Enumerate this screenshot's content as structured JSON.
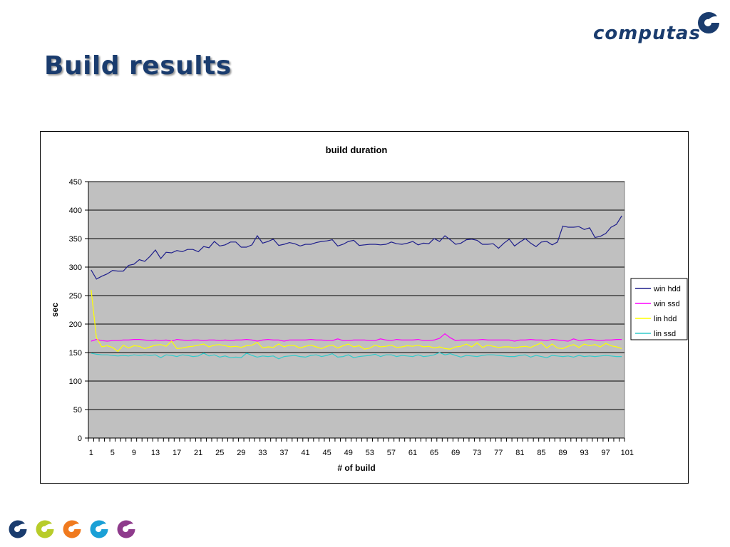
{
  "slide": {
    "title": "Build results"
  },
  "logo": {
    "text": "computas",
    "color": "#1a3c6e",
    "accent": "#1a3c6e"
  },
  "colors": {
    "title": "#1a3c6e",
    "plot_bg": "#c0c0c0",
    "gridline": "#000000"
  },
  "footer": {
    "icons": [
      {
        "name": "computas-mark-icon",
        "color": "#1a3c6e"
      },
      {
        "name": "computas-mark-icon",
        "color": "#b8cc2a"
      },
      {
        "name": "computas-mark-icon",
        "color": "#f07a1e"
      },
      {
        "name": "computas-mark-icon",
        "color": "#1aa0d6"
      },
      {
        "name": "computas-mark-icon",
        "color": "#8e3b8c"
      }
    ]
  },
  "chart_data": {
    "type": "line",
    "title": "build duration",
    "xlabel": "# of build",
    "ylabel": "sec",
    "ylim": [
      0,
      450
    ],
    "yticks": [
      0,
      50,
      100,
      150,
      200,
      250,
      300,
      350,
      400,
      450
    ],
    "xlim": [
      1,
      101
    ],
    "xticks": [
      1,
      5,
      9,
      13,
      17,
      21,
      25,
      29,
      33,
      37,
      41,
      45,
      49,
      53,
      57,
      61,
      65,
      69,
      73,
      77,
      81,
      85,
      89,
      93,
      97,
      101
    ],
    "grid": "horizontal",
    "legend_position": "right",
    "series": [
      {
        "name": "win hdd",
        "color": "#1f1f8c",
        "values": [
          295,
          279,
          284,
          288,
          294,
          293,
          293,
          303,
          305,
          313,
          310,
          319,
          330,
          315,
          326,
          325,
          329,
          327,
          331,
          331,
          327,
          336,
          334,
          345,
          337,
          339,
          344,
          344,
          335,
          335,
          339,
          355,
          342,
          345,
          349,
          338,
          340,
          343,
          341,
          337,
          340,
          340,
          343,
          345,
          346,
          348,
          337,
          340,
          345,
          347,
          338,
          339,
          340,
          340,
          339,
          340,
          344,
          341,
          340,
          342,
          345,
          339,
          342,
          341,
          350,
          345,
          355,
          348,
          340,
          342,
          348,
          349,
          347,
          340,
          340,
          341,
          333,
          342,
          349,
          337,
          344,
          350,
          342,
          336,
          344,
          345,
          339,
          344,
          372,
          370,
          370,
          371,
          366,
          369,
          352,
          354,
          359,
          370,
          375,
          390
        ]
      },
      {
        "name": "win ssd",
        "color": "#ff00ff",
        "values": [
          170,
          173,
          171,
          170,
          171,
          171,
          172,
          172,
          173,
          173,
          172,
          171,
          172,
          171,
          172,
          170,
          173,
          172,
          171,
          172,
          172,
          171,
          172,
          172,
          171,
          172,
          171,
          172,
          172,
          173,
          172,
          170,
          172,
          173,
          172,
          172,
          170,
          172,
          172,
          172,
          172,
          173,
          172,
          172,
          171,
          171,
          174,
          171,
          171,
          172,
          172,
          172,
          171,
          171,
          174,
          172,
          171,
          173,
          172,
          172,
          172,
          173,
          171,
          171,
          172,
          175,
          183,
          176,
          171,
          172,
          172,
          172,
          172,
          173,
          172,
          172,
          172,
          172,
          172,
          170,
          172,
          172,
          173,
          172,
          172,
          171,
          173,
          172,
          171,
          170,
          174,
          171,
          172,
          173,
          172,
          171,
          172,
          172,
          173,
          173
        ]
      },
      {
        "name": "lin hdd",
        "color": "#ffff00",
        "values": [
          260,
          176,
          160,
          162,
          159,
          152,
          163,
          158,
          162,
          161,
          157,
          160,
          163,
          164,
          161,
          170,
          157,
          158,
          160,
          161,
          163,
          165,
          160,
          163,
          164,
          162,
          160,
          161,
          159,
          162,
          163,
          168,
          158,
          160,
          159,
          165,
          160,
          163,
          162,
          158,
          161,
          163,
          160,
          157,
          161,
          163,
          158,
          162,
          165,
          160,
          162,
          156,
          158,
          163,
          160,
          161,
          163,
          159,
          160,
          162,
          161,
          163,
          160,
          161,
          158,
          160,
          157,
          156,
          160,
          161,
          165,
          160,
          167,
          159,
          163,
          161,
          159,
          160,
          160,
          158,
          160,
          161,
          159,
          163,
          167,
          158,
          165,
          158,
          157,
          161,
          164,
          159,
          165,
          162,
          164,
          160,
          166,
          162,
          160,
          157
        ]
      },
      {
        "name": "lin ssd",
        "color": "#33cccc",
        "values": [
          149,
          147,
          146,
          146,
          145,
          144,
          145,
          144,
          146,
          145,
          146,
          145,
          146,
          141,
          146,
          145,
          143,
          146,
          145,
          143,
          144,
          149,
          144,
          146,
          142,
          144,
          141,
          142,
          141,
          149,
          145,
          142,
          144,
          143,
          144,
          139,
          143,
          144,
          145,
          143,
          142,
          145,
          146,
          143,
          145,
          148,
          142,
          143,
          146,
          141,
          143,
          144,
          145,
          147,
          143,
          146,
          146,
          143,
          145,
          144,
          143,
          146,
          143,
          144,
          146,
          150,
          146,
          148,
          145,
          142,
          145,
          144,
          143,
          145,
          146,
          146,
          145,
          144,
          143,
          143,
          145,
          146,
          142,
          145,
          143,
          141,
          145,
          144,
          143,
          144,
          142,
          145,
          143,
          144,
          143,
          144,
          145,
          144,
          143,
          143
        ]
      }
    ]
  }
}
